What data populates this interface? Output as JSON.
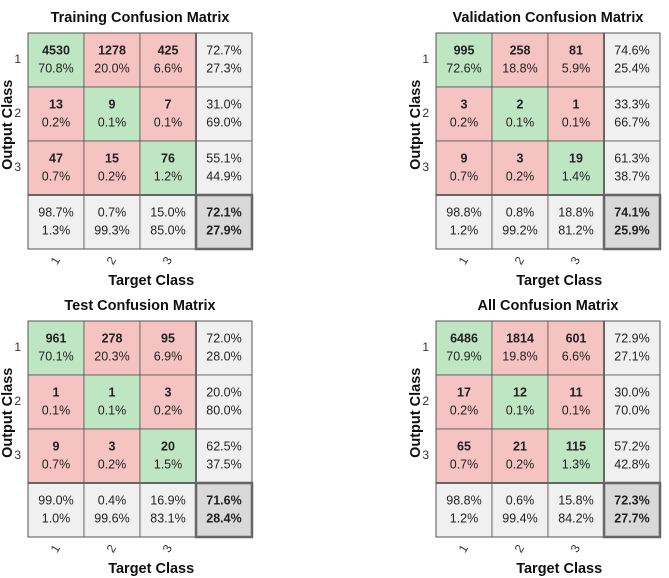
{
  "colors": {
    "correct_cell": "#bfe6c3",
    "error_cell": "#f5c4c2",
    "summary_cell": "#f0f0f0",
    "overall_cell": "#d9d9d9",
    "correct_text": "#2eaa3a",
    "error_text": "#e03a3a"
  },
  "chart_data": [
    {
      "type": "confusion",
      "title": "Training Confusion Matrix",
      "xlabel": "Target Class",
      "ylabel": "Output Class",
      "categories": [
        "1",
        "2",
        "3"
      ],
      "counts": [
        [
          4530,
          1278,
          425
        ],
        [
          13,
          9,
          7
        ],
        [
          47,
          15,
          76
        ]
      ],
      "percents": [
        [
          70.8,
          20.0,
          6.6
        ],
        [
          0.2,
          0.1,
          0.1
        ],
        [
          0.7,
          0.2,
          1.2
        ]
      ],
      "percent_labels": [
        [
          "70.8%",
          "20.0%",
          "6.6%"
        ],
        [
          "0.2%",
          "0.1%",
          "0.1%"
        ],
        [
          "0.7%",
          "0.2%",
          "1.2%"
        ]
      ],
      "row_correct": [
        72.7,
        31.0,
        55.1
      ],
      "row_correct_labels": [
        "72.7%",
        "31.0%",
        "55.1%"
      ],
      "row_error": [
        27.3,
        69.0,
        44.9
      ],
      "row_error_labels": [
        "27.3%",
        "69.0%",
        "44.9%"
      ],
      "col_correct": [
        98.7,
        0.7,
        15.0
      ],
      "col_correct_labels": [
        "98.7%",
        "0.7%",
        "15.0%"
      ],
      "col_error": [
        1.3,
        99.3,
        85.0
      ],
      "col_error_labels": [
        "1.3%",
        "99.3%",
        "85.0%"
      ],
      "overall_correct": 72.1,
      "overall_correct_label": "72.1%",
      "overall_error": 27.9,
      "overall_error_label": "27.9%"
    },
    {
      "type": "confusion",
      "title": "Validation Confusion Matrix",
      "xlabel": "Target Class",
      "ylabel": "Output Class",
      "categories": [
        "1",
        "2",
        "3"
      ],
      "counts": [
        [
          995,
          258,
          81
        ],
        [
          3,
          2,
          1
        ],
        [
          9,
          3,
          19
        ]
      ],
      "percents": [
        [
          72.6,
          18.8,
          5.9
        ],
        [
          0.2,
          0.1,
          0.1
        ],
        [
          0.7,
          0.2,
          1.4
        ]
      ],
      "percent_labels": [
        [
          "72.6%",
          "18.8%",
          "5.9%"
        ],
        [
          "0.2%",
          "0.1%",
          "0.1%"
        ],
        [
          "0.7%",
          "0.2%",
          "1.4%"
        ]
      ],
      "row_correct": [
        74.6,
        33.3,
        61.3
      ],
      "row_correct_labels": [
        "74.6%",
        "33.3%",
        "61.3%"
      ],
      "row_error": [
        25.4,
        66.7,
        38.7
      ],
      "row_error_labels": [
        "25.4%",
        "66.7%",
        "38.7%"
      ],
      "col_correct": [
        98.8,
        0.8,
        18.8
      ],
      "col_correct_labels": [
        "98.8%",
        "0.8%",
        "18.8%"
      ],
      "col_error": [
        1.2,
        99.2,
        81.2
      ],
      "col_error_labels": [
        "1.2%",
        "99.2%",
        "81.2%"
      ],
      "overall_correct": 74.1,
      "overall_correct_label": "74.1%",
      "overall_error": 25.9,
      "overall_error_label": "25.9%"
    },
    {
      "type": "confusion",
      "title": "Test Confusion Matrix",
      "xlabel": "Target Class",
      "ylabel": "Output Class",
      "categories": [
        "1",
        "2",
        "3"
      ],
      "counts": [
        [
          961,
          278,
          95
        ],
        [
          1,
          1,
          3
        ],
        [
          9,
          3,
          20
        ]
      ],
      "percents": [
        [
          70.1,
          20.3,
          6.9
        ],
        [
          0.1,
          0.1,
          0.2
        ],
        [
          0.7,
          0.2,
          1.5
        ]
      ],
      "percent_labels": [
        [
          "70.1%",
          "20.3%",
          "6.9%"
        ],
        [
          "0.1%",
          "0.1%",
          "0.2%"
        ],
        [
          "0.7%",
          "0.2%",
          "1.5%"
        ]
      ],
      "row_correct": [
        72.0,
        20.0,
        62.5
      ],
      "row_correct_labels": [
        "72.0%",
        "20.0%",
        "62.5%"
      ],
      "row_error": [
        28.0,
        80.0,
        37.5
      ],
      "row_error_labels": [
        "28.0%",
        "80.0%",
        "37.5%"
      ],
      "col_correct": [
        99.0,
        0.4,
        16.9
      ],
      "col_correct_labels": [
        "99.0%",
        "0.4%",
        "16.9%"
      ],
      "col_error": [
        1.0,
        99.6,
        83.1
      ],
      "col_error_labels": [
        "1.0%",
        "99.6%",
        "83.1%"
      ],
      "overall_correct": 71.6,
      "overall_correct_label": "71.6%",
      "overall_error": 28.4,
      "overall_error_label": "28.4%"
    },
    {
      "type": "confusion",
      "title": "All Confusion Matrix",
      "xlabel": "Target Class",
      "ylabel": "Output Class",
      "categories": [
        "1",
        "2",
        "3"
      ],
      "counts": [
        [
          6486,
          1814,
          601
        ],
        [
          17,
          12,
          11
        ],
        [
          65,
          21,
          115
        ]
      ],
      "percents": [
        [
          70.9,
          19.8,
          6.6
        ],
        [
          0.2,
          0.1,
          0.1
        ],
        [
          0.7,
          0.2,
          1.3
        ]
      ],
      "percent_labels": [
        [
          "70.9%",
          "19.8%",
          "6.6%"
        ],
        [
          "0.2%",
          "0.1%",
          "0.1%"
        ],
        [
          "0.7%",
          "0.2%",
          "1.3%"
        ]
      ],
      "row_correct": [
        72.9,
        30.0,
        57.2
      ],
      "row_correct_labels": [
        "72.9%",
        "30.0%",
        "57.2%"
      ],
      "row_error": [
        27.1,
        70.0,
        42.8
      ],
      "row_error_labels": [
        "27.1%",
        "70.0%",
        "42.8%"
      ],
      "col_correct": [
        98.8,
        0.6,
        15.8
      ],
      "col_correct_labels": [
        "98.8%",
        "0.6%",
        "15.8%"
      ],
      "col_error": [
        1.2,
        99.4,
        84.2
      ],
      "col_error_labels": [
        "1.2%",
        "99.4%",
        "84.2%"
      ],
      "overall_correct": 72.3,
      "overall_correct_label": "72.3%",
      "overall_error": 27.7,
      "overall_error_label": "27.7%"
    }
  ]
}
